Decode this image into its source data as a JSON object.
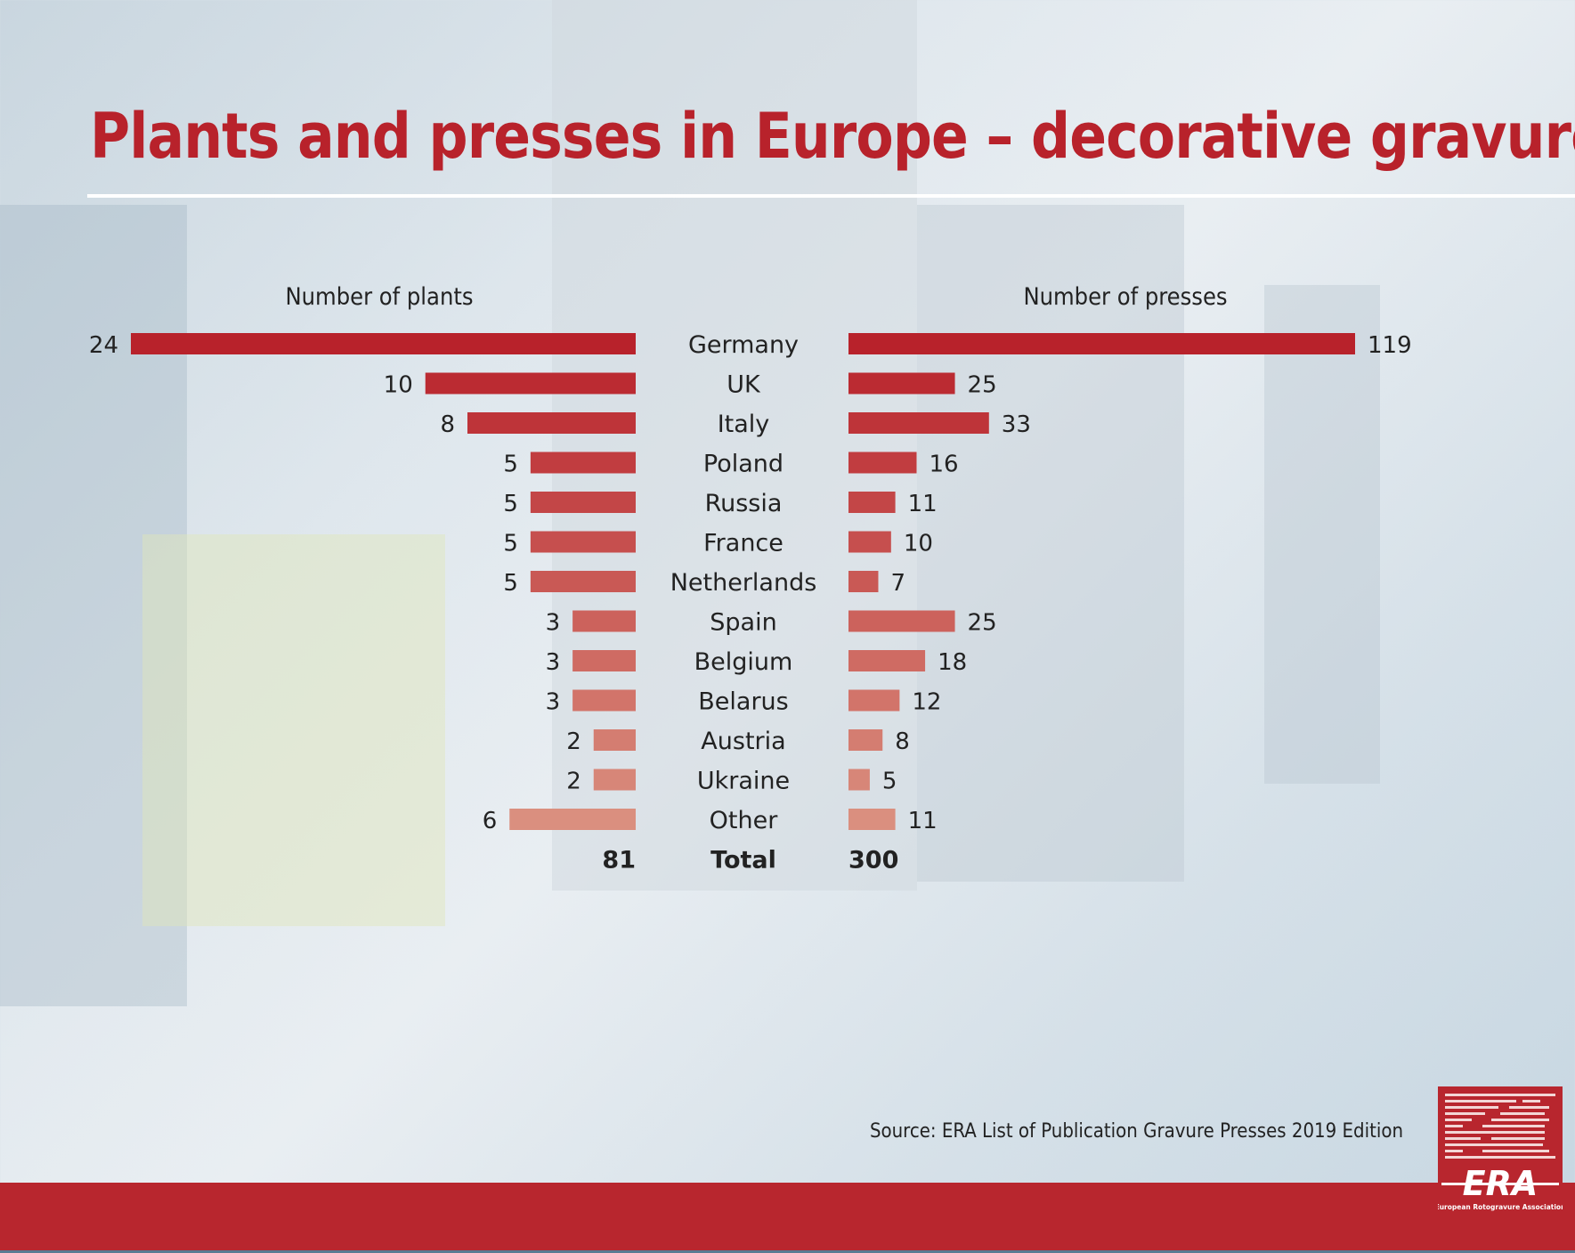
{
  "title": "Plants and presses in Europe – decorative gravure",
  "source": "Source: ERA List of Publication Gravure Presses 2019 Edition",
  "logo": {
    "text": "ERA",
    "subtitle": "European Rotogravure Association"
  },
  "colors": {
    "accent": "#b8222b",
    "bar_dark": "#b8222b",
    "bar_light": "#da8f7f",
    "footer": "#b8262e"
  },
  "chart_data": {
    "type": "bar",
    "orientation": "horizontal-butterfly",
    "categories": [
      "Germany",
      "UK",
      "Italy",
      "Poland",
      "Russia",
      "France",
      "Netherlands",
      "Spain",
      "Belgium",
      "Belarus",
      "Austria",
      "Ukraine",
      "Other"
    ],
    "series": [
      {
        "name": "Number of plants",
        "values": [
          24,
          10,
          8,
          5,
          5,
          5,
          5,
          3,
          3,
          3,
          2,
          2,
          6
        ],
        "total": 81
      },
      {
        "name": "Number of presses",
        "values": [
          119,
          25,
          33,
          16,
          11,
          10,
          7,
          25,
          18,
          12,
          8,
          5,
          11
        ],
        "total": 300
      }
    ],
    "total_label": "Total",
    "grid": false
  }
}
